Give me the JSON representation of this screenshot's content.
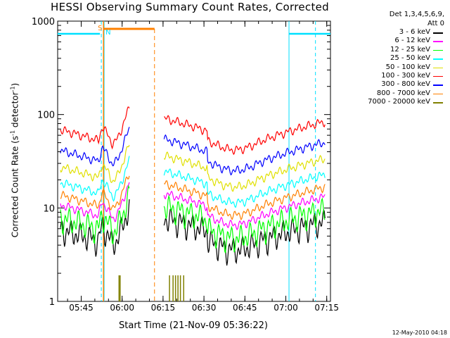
{
  "chart_data": {
    "type": "line",
    "title": "HESSI Observing Summary Count Rates, Corrected",
    "xlabel": "Start Time (21-Nov-09 05:36:22)",
    "ylabel_text": "Corrected Count Rate (s",
    "ylabel_sup1": "-1",
    "ylabel_mid": " detector",
    "ylabel_sup2": "-1",
    "ylabel_end": ")",
    "yscale": "log",
    "ylim": [
      1,
      1000
    ],
    "xlim_minutes": [
      0,
      100
    ],
    "x_ticks": [
      {
        "label": "05:45",
        "t": 8.63
      },
      {
        "label": "06:00",
        "t": 23.63
      },
      {
        "label": "06:15",
        "t": 38.63
      },
      {
        "label": "06:30",
        "t": 53.63
      },
      {
        "label": "06:45",
        "t": 68.63
      },
      {
        "label": "07:00",
        "t": 83.63
      },
      {
        "label": "07:15",
        "t": 98.63
      }
    ],
    "y_ticks": [
      {
        "label": "1",
        "v": 1
      },
      {
        "label": "10",
        "v": 10
      },
      {
        "label": "100",
        "v": 100
      },
      {
        "label": "1000",
        "v": 1000
      }
    ],
    "legend_header_1": "Det 1,3,4,5,6,9,",
    "legend_header_2": "Att 0",
    "series": [
      {
        "name": "3 - 6 keV",
        "color": "#000000",
        "level": 6.0
      },
      {
        "name": "6 - 12 keV",
        "color": "#ff00ff",
        "level": 11.0
      },
      {
        "name": "12 - 25 keV",
        "color": "#00ff00",
        "level": 8.0
      },
      {
        "name": "25 - 50 keV",
        "color": "#00ffff",
        "level": 19.0
      },
      {
        "name": "50 - 100 keV",
        "color": "#e0e000",
        "level": 28.0
      },
      {
        "name": "100 - 300 keV",
        "color": "#ff0000",
        "level": 70.0
      },
      {
        "name": "300 - 800 keV",
        "color": "#0000ff",
        "level": 42.0
      },
      {
        "name": "800 - 7000 keV",
        "color": "#ff8000",
        "level": 14.0
      },
      {
        "name": "7000 - 20000 keV",
        "color": "#808000",
        "level": 1.0
      }
    ],
    "annotations": {
      "s_label": "S",
      "n_label": "N",
      "saa_start": 16.8,
      "saa_end": 35.5,
      "night1_start": 16.0,
      "night1_end": 84.8,
      "night_end2": 94.5
    },
    "stamp": "12-May-2010 04:18"
  }
}
